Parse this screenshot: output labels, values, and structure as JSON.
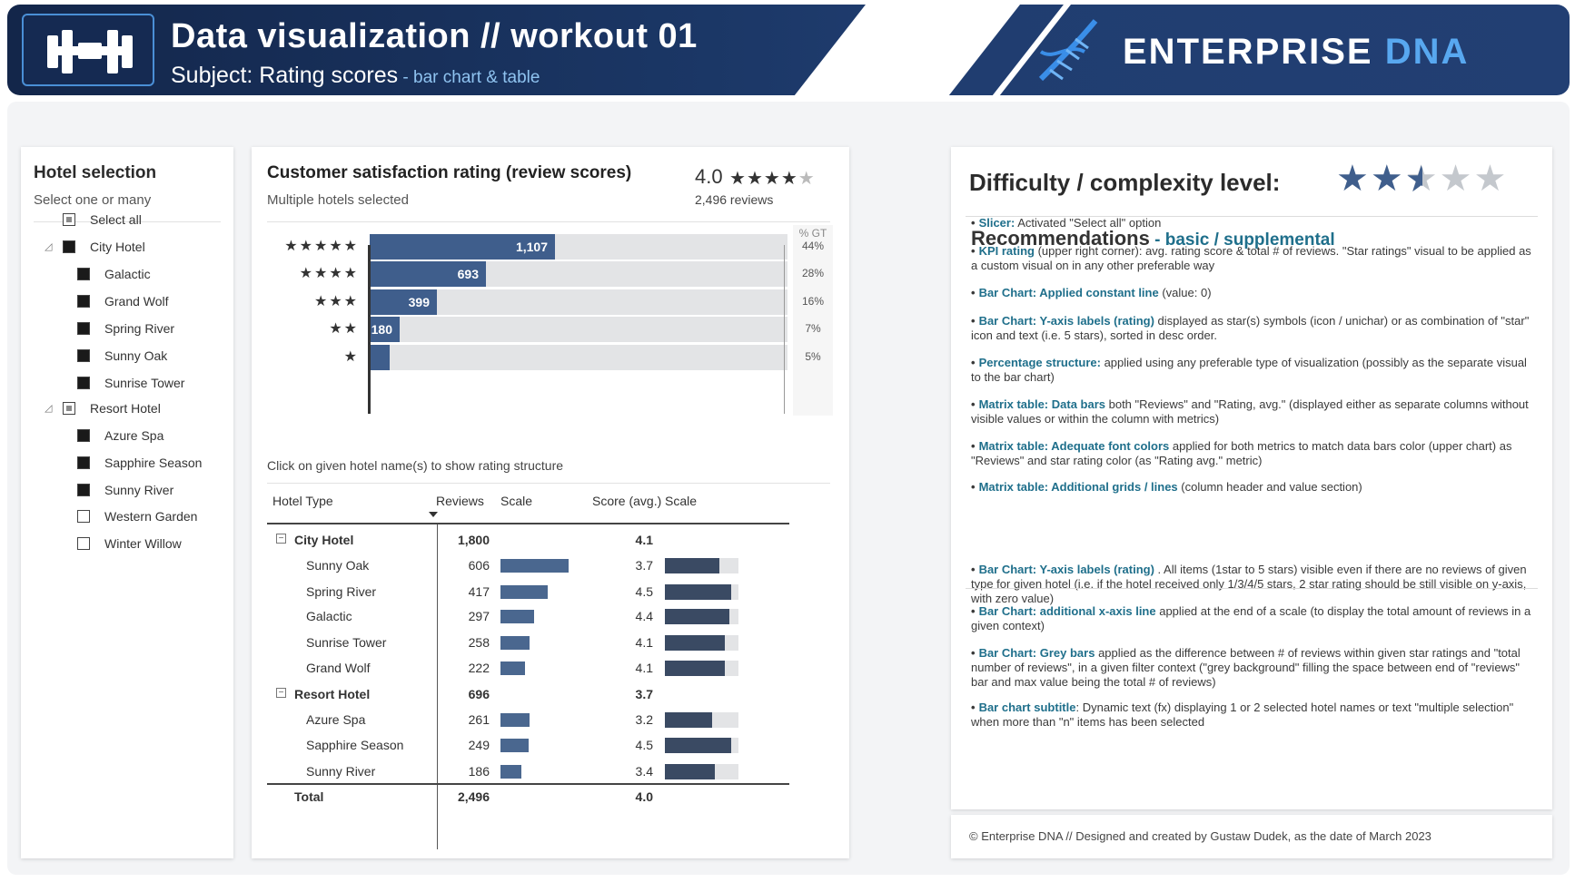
{
  "header": {
    "title": "Data visualization // workout 01",
    "subtitle": "Subject: Rating scores",
    "subtitle_small": " - bar chart & table",
    "brand_main": "ENTERPRISE",
    "brand_accent": "DNA",
    "logo_icon": "dumbbell-icon",
    "brand_icon": "dna-icon",
    "colors": {
      "header_dark": "#13264a",
      "accent_blue": "#4a8fd6"
    }
  },
  "slicer": {
    "title": "Hotel selection",
    "subtitle": "Select one or many",
    "items": [
      {
        "label": "Select all",
        "state": "partial",
        "level": 0
      },
      {
        "label": "City Hotel",
        "state": "full",
        "level": 0,
        "expandable": true
      },
      {
        "label": "Galactic",
        "state": "full",
        "level": 1
      },
      {
        "label": "Grand Wolf",
        "state": "full",
        "level": 1
      },
      {
        "label": "Spring River",
        "state": "full",
        "level": 1
      },
      {
        "label": "Sunny Oak",
        "state": "full",
        "level": 1
      },
      {
        "label": "Sunrise Tower",
        "state": "full",
        "level": 1
      },
      {
        "label": "Resort Hotel",
        "state": "partial",
        "level": 0,
        "expandable": true
      },
      {
        "label": "Azure Spa",
        "state": "full",
        "level": 1
      },
      {
        "label": "Sapphire Season",
        "state": "full",
        "level": 1
      },
      {
        "label": "Sunny River",
        "state": "full",
        "level": 1
      },
      {
        "label": "Western Garden",
        "state": "empty",
        "level": 1
      },
      {
        "label": "Winter Willow",
        "state": "empty",
        "level": 1
      }
    ]
  },
  "main": {
    "title": "Customer satisfaction rating (review scores)",
    "subtitle": "Multiple hotels selected",
    "kpi_value": "4.0",
    "kpi_stars_filled": 4,
    "kpi_reviews": "2,496 reviews",
    "pct_header": "% GT",
    "click_hint": "Click on given hotel name(s) to show rating structure"
  },
  "chart_data": {
    "type": "bar",
    "orientation": "horizontal",
    "categories": [
      "5 stars",
      "4 stars",
      "3 stars",
      "2 stars",
      "1 star"
    ],
    "stars": [
      5,
      4,
      3,
      2,
      1
    ],
    "values": [
      1107,
      693,
      399,
      180,
      117
    ],
    "value_labels": [
      "1,107",
      "693",
      "399",
      "180",
      ""
    ],
    "pct_gt": [
      "44%",
      "28%",
      "16%",
      "7%",
      "5%"
    ],
    "total": 2496,
    "colors": {
      "bar": "#3f5e8c",
      "background": "#e3e4e6"
    }
  },
  "matrix": {
    "headers": {
      "type": "Hotel Type",
      "reviews": "Reviews",
      "scale1": "Scale",
      "score": "Score (avg.)",
      "scale2": "Scale"
    },
    "rows": [
      {
        "name": "City Hotel",
        "reviews": "1,800",
        "score": "4.1",
        "group": true
      },
      {
        "name": "Sunny Oak",
        "reviews": "606",
        "score": "3.7",
        "rv": 606,
        "sc": 3.7
      },
      {
        "name": "Spring River",
        "reviews": "417",
        "score": "4.5",
        "rv": 417,
        "sc": 4.5
      },
      {
        "name": "Galactic",
        "reviews": "297",
        "score": "4.4",
        "rv": 297,
        "sc": 4.4
      },
      {
        "name": "Sunrise Tower",
        "reviews": "258",
        "score": "4.1",
        "rv": 258,
        "sc": 4.1
      },
      {
        "name": "Grand Wolf",
        "reviews": "222",
        "score": "4.1",
        "rv": 222,
        "sc": 4.1
      },
      {
        "name": "Resort Hotel",
        "reviews": "696",
        "score": "3.7",
        "group": true
      },
      {
        "name": "Azure Spa",
        "reviews": "261",
        "score": "3.2",
        "rv": 261,
        "sc": 3.2
      },
      {
        "name": "Sapphire Season",
        "reviews": "249",
        "score": "4.5",
        "rv": 249,
        "sc": 4.5
      },
      {
        "name": "Sunny River",
        "reviews": "186",
        "score": "3.4",
        "rv": 186,
        "sc": 3.4
      }
    ],
    "total": {
      "name": "Total",
      "reviews": "2,496",
      "score": "4.0"
    }
  },
  "right": {
    "title": "Difficulty / complexity level:",
    "difficulty_rating": 2.5,
    "rec_title": "Recommendations",
    "rec_sep": " - ",
    "rec_basic": "basic",
    "rec_slash": " / ",
    "rec_supp": "supplemental",
    "basic": [
      {
        "k": "Slicer:",
        "t": " Activated \"Select all\" option"
      },
      {
        "k": "KPI rating",
        "t": " (upper right corner): avg. rating score & total # of reviews. \"Star ratings\" visual to be applied as a custom visual on in any other preferable way"
      },
      {
        "k": "Bar Chart: Applied constant line",
        "t": " (value: 0)"
      },
      {
        "k": "Bar Chart: Y-axis labels (rating)",
        "t": " displayed as star(s) symbols (icon / unichar) or as combination of \"star\" icon and text (i.e. 5 stars), sorted in desc order."
      },
      {
        "k": "Percentage structure:",
        "t": " applied using any preferable type of visualization (possibly as the separate visual to the bar chart)"
      },
      {
        "k": "Matrix table: Data bars",
        "t": " both \"Reviews\" and \"Rating, avg.\" (displayed either as separate columns without visible values or within the column with metrics)"
      },
      {
        "k": "Matrix table: Adequate font colors",
        "t": " applied for both metrics to match data bars color (upper chart) as \"Reviews\" and star rating color (as \"Rating avg.\" metric)"
      },
      {
        "k": "Matrix table: Additional grids / lines",
        "t": " (column header and value section)"
      }
    ],
    "supplemental": [
      {
        "k": "Bar Chart: Y-axis labels (rating)",
        "t": " . All items (1star to 5 stars) visible even if there are no reviews of given type for given hotel (i.e. if the hotel received only 1/3/4/5 stars, 2 star rating should be still visible on y-axis, with zero value)"
      },
      {
        "k": "Bar Chart: additional x-axis line",
        "t": " applied at the end of a scale (to display the total amount of reviews in a given context)"
      },
      {
        "k": "Bar Chart: Grey bars",
        "t": " applied as the difference between # of reviews within given star ratings and \"total number of reviews\", in a given filter context (\"grey background\" filling the space between end of \"reviews\" bar and max value being the total # of reviews)"
      },
      {
        "k": "Bar chart subtitle",
        "t": ": Dynamic text (fx) displaying 1 or 2 selected hotel names or text \"multiple selection\" when more than \"n\" items has been selected"
      }
    ]
  },
  "footer": {
    "text": "© Enterprise DNA // Designed and created by Gustaw Dudek, as the date of March 2023"
  }
}
